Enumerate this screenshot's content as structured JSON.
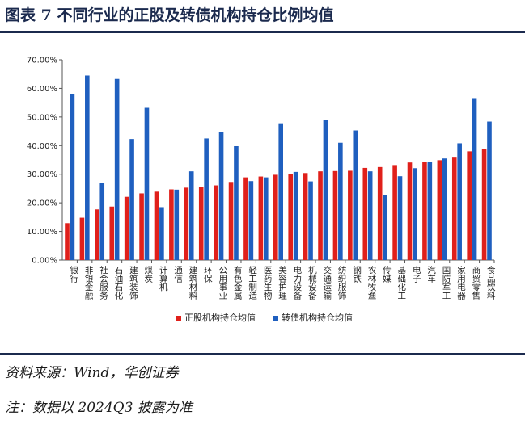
{
  "header": {
    "title": "图表 7   不同行业的正股及转债机构持仓比例均值"
  },
  "footer": {
    "source": "资料来源：Wind，华创证券",
    "note": "注：数据以 2024Q3 披露为准"
  },
  "colors": {
    "accent": "#1b2a4e",
    "series_stock": "#e0201b",
    "series_cb": "#1f5fbf"
  },
  "chart_data": {
    "type": "bar",
    "title": "",
    "xlabel": "",
    "ylabel": "",
    "ylim": [
      0,
      70
    ],
    "yticks": [
      "0.00%",
      "10.00%",
      "20.00%",
      "30.00%",
      "40.00%",
      "50.00%",
      "60.00%",
      "70.00%"
    ],
    "grid": false,
    "legend_position": "bottom",
    "categories": [
      "银行",
      "非银金融",
      "社会服务",
      "石油石化",
      "建筑装饰",
      "煤炭",
      "计算机",
      "通信",
      "建筑材料",
      "环保",
      "公用事业",
      "有色金属",
      "轻工制造",
      "医药生物",
      "美容护理",
      "电力设备",
      "机械设备",
      "交通运输",
      "纺织服饰",
      "钢铁",
      "农林牧渔",
      "传媒",
      "基础化工",
      "电子",
      "汽车",
      "国防军工",
      "家用电器",
      "商贸零售",
      "食品饮料"
    ],
    "series": [
      {
        "name": "正股机构持仓均值",
        "color": "#e0201b",
        "values": [
          12.9,
          14.8,
          17.7,
          18.7,
          22.1,
          23.3,
          23.9,
          24.7,
          25.3,
          25.5,
          26.1,
          27.3,
          28.9,
          29.2,
          29.8,
          30.2,
          30.4,
          31.0,
          31.1,
          31.2,
          32.2,
          32.5,
          33.2,
          34.1,
          34.3,
          34.9,
          35.8,
          38.0,
          38.8
        ]
      },
      {
        "name": "转债机构持仓均值",
        "color": "#1f5fbf",
        "values": [
          58.0,
          64.5,
          27.0,
          63.3,
          42.3,
          53.2,
          18.5,
          24.6,
          31.0,
          42.5,
          44.7,
          39.8,
          27.6,
          28.9,
          47.8,
          30.8,
          27.5,
          49.1,
          41.0,
          45.3,
          31.0,
          22.7,
          29.3,
          32.1,
          34.3,
          35.5,
          40.8,
          56.6,
          48.4
        ]
      }
    ]
  }
}
